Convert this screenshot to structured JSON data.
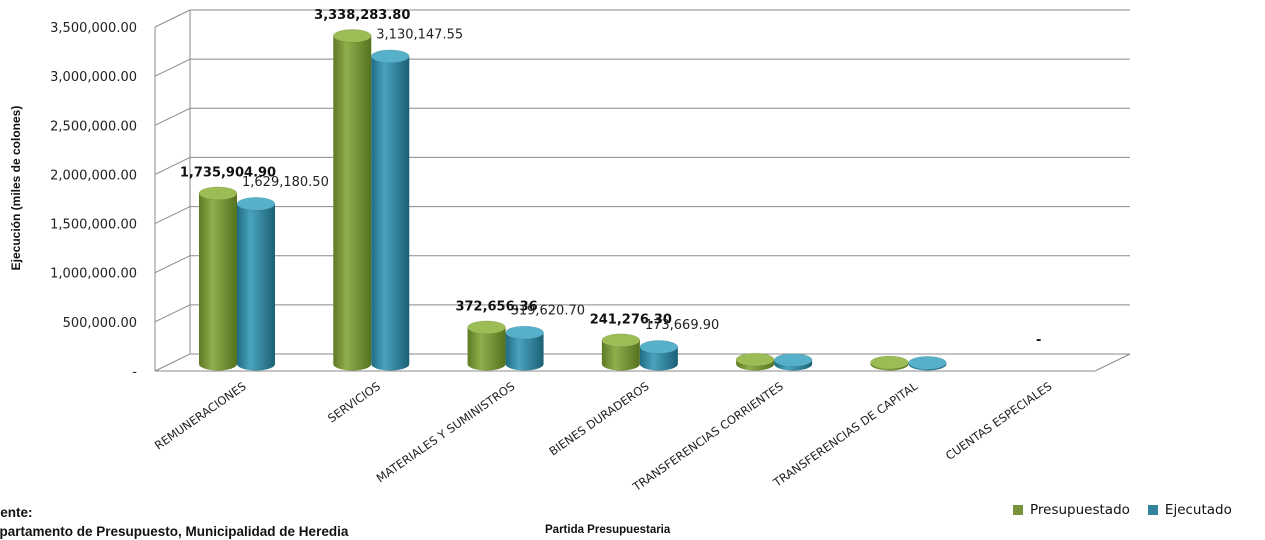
{
  "chart_data": {
    "type": "bar",
    "categories": [
      "REMUNERACIONES",
      "SERVICIOS",
      "MATERIALES Y SUMINISTROS",
      "BIENES DURADEROS",
      "TRANSFERENCIAS CORRIENTES",
      "TRANSFERENCIAS DE CAPITAL",
      "CUENTAS ESPECIALES"
    ],
    "series": [
      {
        "name": "Presupuestado",
        "color": "#77933c",
        "values": [
          1735904.9,
          3338283.8,
          372656.36,
          241276.3,
          45000,
          15000,
          0
        ]
      },
      {
        "name": "Ejecutado",
        "color": "#31849b",
        "values": [
          1629180.5,
          3130147.55,
          319620.7,
          173669.9,
          40000,
          12000,
          0
        ]
      }
    ],
    "data_labels": {
      "Presupuestado": [
        "1,735,904.90",
        "3,338,283.80",
        "372,656.36",
        "241,276.30",
        "",
        "",
        "-"
      ],
      "Ejecutado": [
        "1,629,180.50",
        "3,130,147.55",
        "319,620.70",
        "173,669.90",
        "",
        "",
        ""
      ]
    },
    "ylabel": "Ejecución (miles de colones)",
    "xlabel": "Partida Presupuestaria",
    "ylim": [
      0,
      3500000
    ],
    "yticks": [
      0,
      500000,
      1000000,
      1500000,
      2000000,
      2500000,
      3000000,
      3500000
    ],
    "ytick_labels": [
      "-",
      "500,000.00",
      "1,000,000.00",
      "1,500,000.00",
      "2,000,000.00",
      "2,500,000.00",
      "3,000,000.00",
      "3,500,000.00"
    ],
    "grid": true,
    "legend_position": "bottom-right"
  },
  "source": {
    "title": "uente:",
    "text": "epartamento de Presupuesto, Municipalidad de Heredia"
  }
}
